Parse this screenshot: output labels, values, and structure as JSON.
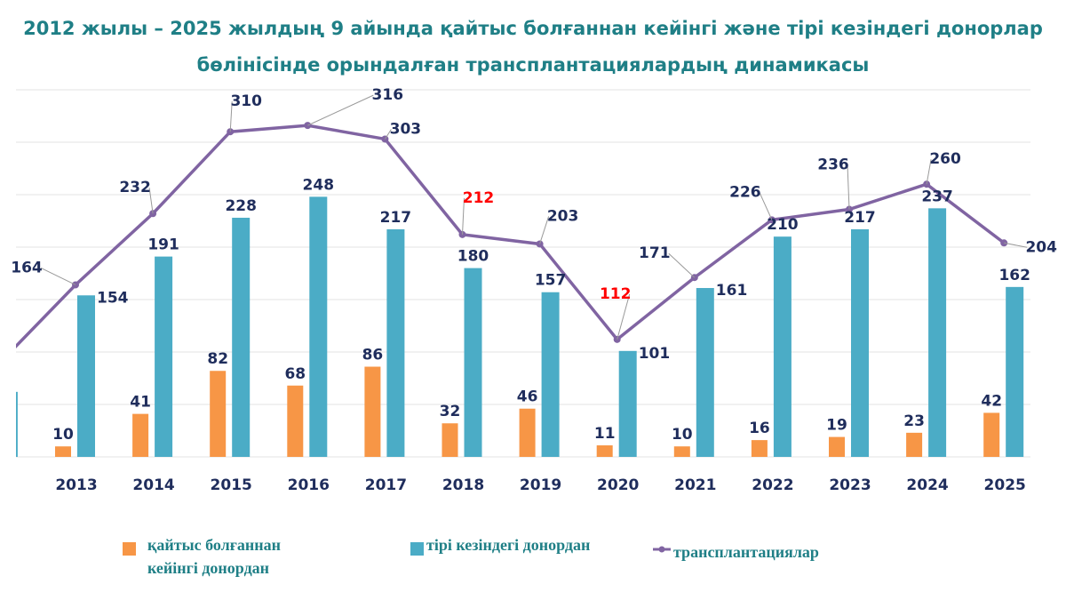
{
  "chart_data": {
    "type": "bar+line",
    "title_line1": "2012 жылы – 2025 жылдың 9 айында қайтыс болғаннан кейінгі және тірі кезіндегі донорлар",
    "title_line2": "бөлінісінде орындалған трансплантациялардың динамикасы",
    "categories": [
      "2013",
      "2014",
      "2015",
      "2016",
      "2017",
      "2018",
      "2019",
      "2020",
      "2021",
      "2022",
      "2023",
      "2024",
      "2025"
    ],
    "ylim": [
      0,
      350
    ],
    "grid": true,
    "series": [
      {
        "name": "қайтыс болғаннан кейінгі донордан",
        "type": "bar",
        "color": "#f79646",
        "values": [
          10,
          41,
          82,
          68,
          86,
          32,
          46,
          11,
          10,
          16,
          19,
          23,
          42
        ]
      },
      {
        "name": "тірі кезіндегі донордан",
        "type": "bar",
        "color": "#4bacc6",
        "values": [
          154,
          191,
          228,
          248,
          217,
          180,
          157,
          101,
          161,
          210,
          217,
          237,
          162
        ]
      },
      {
        "name": "трансплантациялар",
        "type": "line",
        "color": "#8064a2",
        "values": [
          164,
          232,
          310,
          316,
          303,
          212,
          203,
          112,
          171,
          226,
          236,
          260,
          204
        ],
        "highlight_color": "#ff0000",
        "highlighted": [
          "2018",
          "2020"
        ]
      }
    ],
    "partial_previous_year": {
      "bar_live": 62,
      "line": 88
    },
    "legend": {
      "deceased_line1": "қайтыс болғаннан",
      "deceased_line2": "кейінгі донордан",
      "living": "тірі кезіндегі донордан",
      "total": "трансплантациялар",
      "placement": "bottom"
    },
    "label_color": "#1f2d5c"
  }
}
